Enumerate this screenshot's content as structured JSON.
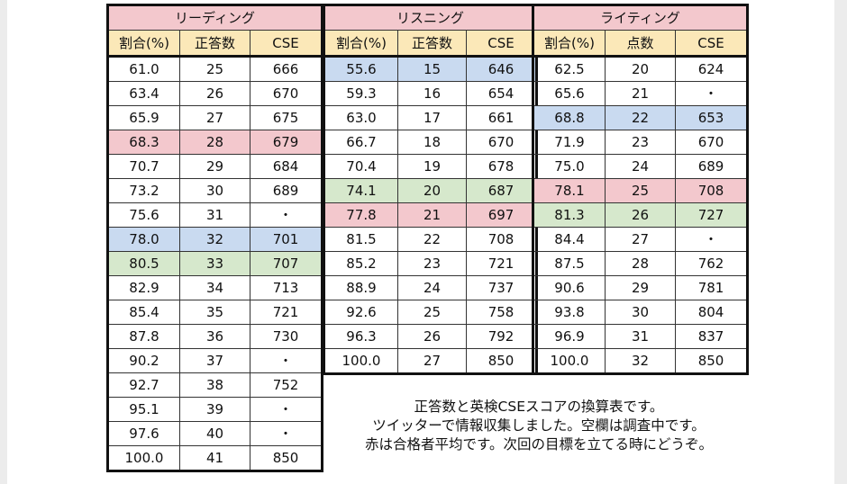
{
  "reading": {
    "title": "リーディング",
    "columns": [
      "割合(%)",
      "正答数",
      "CSE"
    ],
    "rows": [
      [
        "61.0",
        "25",
        "666",
        ""
      ],
      [
        "63.4",
        "26",
        "670",
        ""
      ],
      [
        "65.9",
        "27",
        "675",
        ""
      ],
      [
        "68.3",
        "28",
        "679",
        "pink"
      ],
      [
        "70.7",
        "29",
        "684",
        ""
      ],
      [
        "73.2",
        "30",
        "689",
        ""
      ],
      [
        "75.6",
        "31",
        "・",
        ""
      ],
      [
        "78.0",
        "32",
        "701",
        "blue"
      ],
      [
        "80.5",
        "33",
        "707",
        "green"
      ],
      [
        "82.9",
        "34",
        "713",
        ""
      ],
      [
        "85.4",
        "35",
        "721",
        ""
      ],
      [
        "87.8",
        "36",
        "730",
        ""
      ],
      [
        "90.2",
        "37",
        "・",
        ""
      ],
      [
        "92.7",
        "38",
        "752",
        ""
      ],
      [
        "95.1",
        "39",
        "・",
        ""
      ],
      [
        "97.6",
        "40",
        "・",
        ""
      ],
      [
        "100.0",
        "41",
        "850",
        ""
      ]
    ]
  },
  "listening": {
    "title": "リスニング",
    "columns": [
      "割合(%)",
      "正答数",
      "CSE"
    ],
    "rows": [
      [
        "55.6",
        "15",
        "646",
        "blue"
      ],
      [
        "59.3",
        "16",
        "654",
        ""
      ],
      [
        "63.0",
        "17",
        "661",
        ""
      ],
      [
        "66.7",
        "18",
        "670",
        ""
      ],
      [
        "70.4",
        "19",
        "678",
        ""
      ],
      [
        "74.1",
        "20",
        "687",
        "green"
      ],
      [
        "77.8",
        "21",
        "697",
        "pink"
      ],
      [
        "81.5",
        "22",
        "708",
        ""
      ],
      [
        "85.2",
        "23",
        "721",
        ""
      ],
      [
        "88.9",
        "24",
        "737",
        ""
      ],
      [
        "92.6",
        "25",
        "758",
        ""
      ],
      [
        "96.3",
        "26",
        "792",
        ""
      ],
      [
        "100.0",
        "27",
        "850",
        ""
      ]
    ]
  },
  "writing": {
    "title": "ライティング",
    "columns": [
      "割合(%)",
      "点数",
      "CSE"
    ],
    "rows": [
      [
        "62.5",
        "20",
        "624",
        ""
      ],
      [
        "65.6",
        "21",
        "・",
        ""
      ],
      [
        "68.8",
        "22",
        "653",
        "blue"
      ],
      [
        "71.9",
        "23",
        "670",
        ""
      ],
      [
        "75.0",
        "24",
        "689",
        ""
      ],
      [
        "78.1",
        "25",
        "708",
        "pink"
      ],
      [
        "81.3",
        "26",
        "727",
        "green"
      ],
      [
        "84.4",
        "27",
        "・",
        ""
      ],
      [
        "87.5",
        "28",
        "762",
        ""
      ],
      [
        "90.6",
        "29",
        "781",
        ""
      ],
      [
        "93.8",
        "30",
        "804",
        ""
      ],
      [
        "96.9",
        "31",
        "837",
        ""
      ],
      [
        "100.0",
        "32",
        "850",
        ""
      ]
    ]
  },
  "note": {
    "line1": "正答数と英検CSEスコアの換算表です。",
    "line2": "ツイッターで情報収集しました。空欄は調査中です。",
    "line3": "赤は合格者平均です。次回の目標を立てる時にどうぞ。"
  },
  "colors": {
    "title_bg": "#f3c8cd",
    "header_bg": "#fbe8b8",
    "pink": "#f3c8cd",
    "blue": "#c9daf0",
    "green": "#d6e8cc"
  }
}
